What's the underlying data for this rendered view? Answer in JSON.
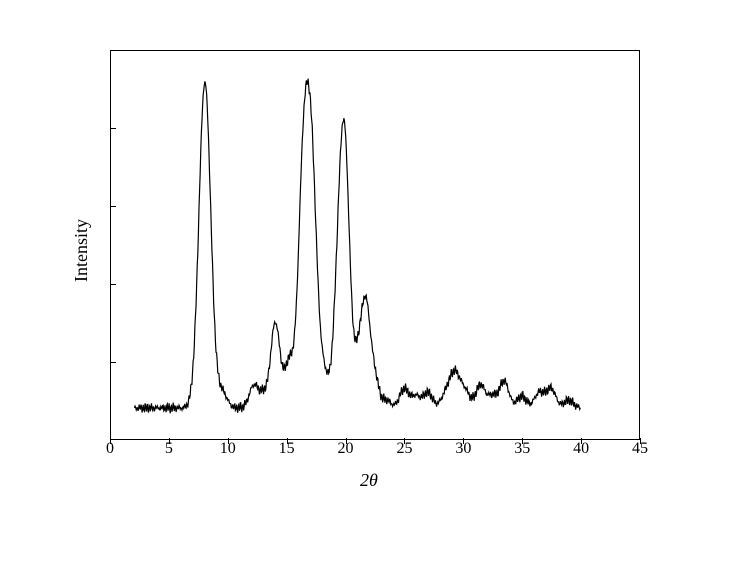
{
  "xrd_chart": {
    "type": "line",
    "xlabel": "2θ",
    "ylabel": "Intensity",
    "xlim": [
      0,
      45
    ],
    "ylim": [
      0,
      100
    ],
    "xtick_step": 5,
    "xticks": [
      0,
      5,
      10,
      15,
      20,
      25,
      30,
      35,
      40,
      45
    ],
    "label_fontsize": 18,
    "tick_fontsize": 16,
    "line_color": "#000000",
    "line_width": 1.2,
    "background_color": "#ffffff",
    "border_color": "#000000",
    "data_x_start": 2,
    "data_x_end": 40,
    "baseline": 8,
    "noise_amplitude": 1.5,
    "peaks": [
      {
        "x": 8.0,
        "height": 92,
        "width": 0.5
      },
      {
        "x": 9.5,
        "height": 12,
        "width": 0.4
      },
      {
        "x": 12.2,
        "height": 14,
        "width": 0.4
      },
      {
        "x": 13.0,
        "height": 11,
        "width": 0.3
      },
      {
        "x": 14.0,
        "height": 30,
        "width": 0.4
      },
      {
        "x": 15.2,
        "height": 20,
        "width": 0.4
      },
      {
        "x": 16.3,
        "height": 50,
        "width": 0.4
      },
      {
        "x": 17.0,
        "height": 78,
        "width": 0.5
      },
      {
        "x": 18.2,
        "height": 15,
        "width": 0.35
      },
      {
        "x": 19.5,
        "height": 48,
        "width": 0.45
      },
      {
        "x": 20.0,
        "height": 56,
        "width": 0.4
      },
      {
        "x": 21.0,
        "height": 18,
        "width": 0.35
      },
      {
        "x": 21.7,
        "height": 35,
        "width": 0.4
      },
      {
        "x": 22.5,
        "height": 15,
        "width": 0.35
      },
      {
        "x": 23.5,
        "height": 10,
        "width": 0.35
      },
      {
        "x": 25.0,
        "height": 13,
        "width": 0.4
      },
      {
        "x": 26.0,
        "height": 11,
        "width": 0.35
      },
      {
        "x": 27.0,
        "height": 12,
        "width": 0.4
      },
      {
        "x": 28.5,
        "height": 11,
        "width": 0.4
      },
      {
        "x": 29.3,
        "height": 17,
        "width": 0.45
      },
      {
        "x": 30.2,
        "height": 12,
        "width": 0.4
      },
      {
        "x": 31.5,
        "height": 14,
        "width": 0.4
      },
      {
        "x": 32.5,
        "height": 11,
        "width": 0.35
      },
      {
        "x": 33.5,
        "height": 15,
        "width": 0.4
      },
      {
        "x": 35.0,
        "height": 11,
        "width": 0.4
      },
      {
        "x": 36.5,
        "height": 12,
        "width": 0.4
      },
      {
        "x": 37.5,
        "height": 13,
        "width": 0.4
      },
      {
        "x": 39.0,
        "height": 10,
        "width": 0.4
      }
    ]
  }
}
